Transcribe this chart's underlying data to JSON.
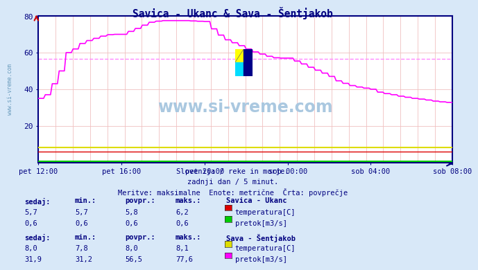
{
  "title": "Savica - Ukanc & Sava - Šentjakob",
  "bg_color": "#d8e8f8",
  "plot_bg_color": "#ffffff",
  "axis_color": "#000080",
  "text_color": "#000080",
  "grid_v_color": "#f0c0c0",
  "grid_h_color": "#f0c0c0",
  "subtitle_lines": [
    "Slovenija / reke in morje.",
    "zadnji dan / 5 minut.",
    "Meritve: maksimalne  Enote: metrične  Črta: povprečje"
  ],
  "watermark_text": "www.si-vreme.com",
  "x_tick_labels": [
    "pet 12:00",
    "pet 16:00",
    "pet 20:00",
    "sob 00:00",
    "sob 04:00",
    "sob 08:00"
  ],
  "x_tick_positions": [
    0,
    48,
    96,
    144,
    192,
    239
  ],
  "ylim": [
    0,
    80
  ],
  "yticks": [
    20,
    40,
    60,
    80
  ],
  "n_points": 240,
  "savica_temp_color": "#dd0000",
  "savica_flow_color": "#00cc00",
  "sava_temp_color": "#dddd00",
  "sava_flow_color": "#ff00ff",
  "povpr_line_color": "#ff88ff",
  "povpr_value": 56.5,
  "logo_colors": [
    "#00ddff",
    "#ffff00",
    "#000088"
  ],
  "table_headers": [
    "sedaj:",
    "min.:",
    "povpr.:",
    "maks.:"
  ],
  "table_savica_name": "Savica - Ukanc",
  "table_sava_name": "Sava - Šentjakob",
  "savica_temp_row": [
    "5,7",
    "5,7",
    "5,8",
    "6,2"
  ],
  "savica_flow_row": [
    "0,6",
    "0,6",
    "0,6",
    "0,6"
  ],
  "sava_temp_row": [
    "8,0",
    "7,8",
    "8,0",
    "8,1"
  ],
  "sava_flow_row": [
    "31,9",
    "31,2",
    "56,5",
    "77,6"
  ],
  "temp_label": "temperatura[C]",
  "flow_label": "pretok[m3/s]",
  "side_label": "www.si-vreme.com"
}
